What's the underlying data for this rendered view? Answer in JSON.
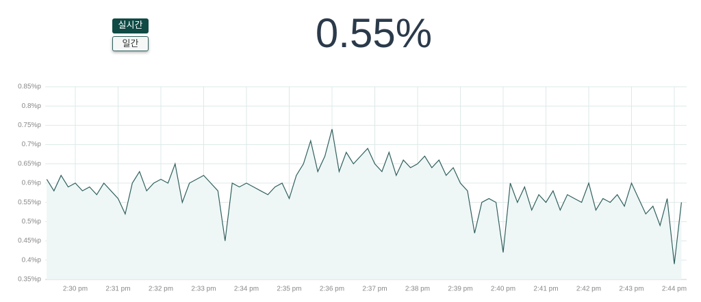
{
  "buttons": [
    "실시간",
    "일간"
  ],
  "current_value": "0.55%",
  "chart_data": {
    "type": "line",
    "color": "#2f5f5c",
    "fill": "#eef6f6",
    "grid": true,
    "categories": [
      null,
      null,
      null,
      null,
      "2:30 pm",
      null,
      null,
      null,
      null,
      null,
      "2:31 pm",
      null,
      null,
      null,
      null,
      null,
      "2:32 pm",
      null,
      null,
      null,
      null,
      null,
      "2:33 pm",
      null,
      null,
      null,
      null,
      null,
      "2:34 pm",
      null,
      null,
      null,
      null,
      null,
      "2:35 pm",
      null,
      null,
      null,
      null,
      null,
      "2:36 pm",
      null,
      null,
      null,
      null,
      null,
      "2:37 pm",
      null,
      null,
      null,
      null,
      null,
      "2:38 pm",
      null,
      null,
      null,
      null,
      null,
      "2:39 pm",
      null,
      null,
      null,
      null,
      null,
      "2:40 pm",
      null,
      null,
      null,
      null,
      null,
      "2:41 pm",
      null,
      null,
      null,
      null,
      null,
      "2:42 pm",
      null,
      null,
      null,
      null,
      null,
      "2:43 pm",
      null,
      null,
      null,
      null,
      null,
      "2:44 pm",
      null
    ],
    "values": [
      0.61,
      0.58,
      0.62,
      0.59,
      0.6,
      0.58,
      0.59,
      0.57,
      0.6,
      0.58,
      0.56,
      0.52,
      0.6,
      0.63,
      0.58,
      0.6,
      0.61,
      0.6,
      0.65,
      0.55,
      0.6,
      0.61,
      0.62,
      0.6,
      0.58,
      0.45,
      0.6,
      0.59,
      0.6,
      0.59,
      0.58,
      0.57,
      0.59,
      0.6,
      0.56,
      0.62,
      0.65,
      0.71,
      0.63,
      0.67,
      0.74,
      0.63,
      0.68,
      0.65,
      0.67,
      0.69,
      0.65,
      0.63,
      0.68,
      0.62,
      0.66,
      0.64,
      0.65,
      0.67,
      0.64,
      0.66,
      0.62,
      0.64,
      0.6,
      0.58,
      0.47,
      0.55,
      0.56,
      0.55,
      0.42,
      0.6,
      0.55,
      0.59,
      0.53,
      0.57,
      0.55,
      0.58,
      0.53,
      0.57,
      0.56,
      0.55,
      0.6,
      0.53,
      0.56,
      0.55,
      0.57,
      0.54,
      0.6,
      0.56,
      0.52,
      0.54,
      0.49,
      0.56,
      0.39,
      0.55
    ],
    "ylim": [
      0.35,
      0.85
    ],
    "yticks": [
      {
        "value": 0.35,
        "label": "0.35%p"
      },
      {
        "value": 0.4,
        "label": "0.4%p"
      },
      {
        "value": 0.45,
        "label": "0.45%p"
      },
      {
        "value": 0.5,
        "label": "0.5%p"
      },
      {
        "value": 0.55,
        "label": "0.55%p"
      },
      {
        "value": 0.6,
        "label": "0.6%p"
      },
      {
        "value": 0.65,
        "label": "0.65%p"
      },
      {
        "value": 0.7,
        "label": "0.7%p"
      },
      {
        "value": 0.75,
        "label": "0.75%p"
      },
      {
        "value": 0.8,
        "label": "0.8%p"
      },
      {
        "value": 0.85,
        "label": "0.85%p"
      }
    ]
  }
}
